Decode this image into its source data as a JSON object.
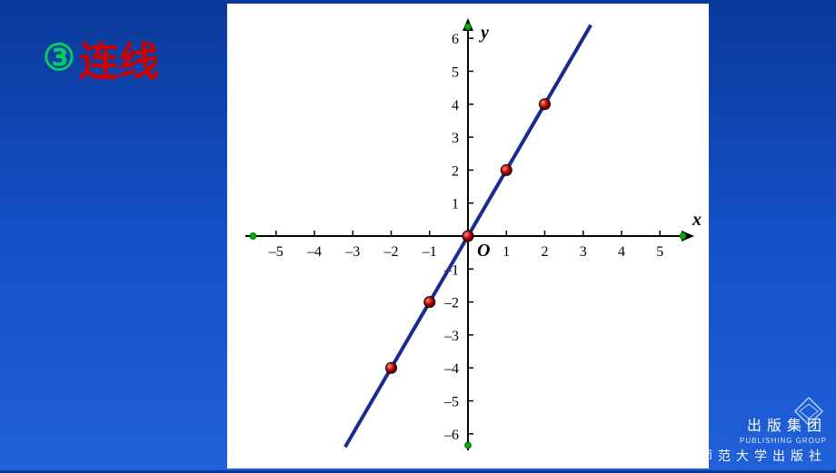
{
  "header": {
    "step_number": "③",
    "step_number_color": "#00d060",
    "step_title": "连线",
    "step_title_color": "#cc0000"
  },
  "chart": {
    "type": "scatter-line",
    "background_color": "#ffffff",
    "xlabel": "x",
    "ylabel": "y",
    "origin_label": "O",
    "label_fontsize": 20,
    "label_style": "italic bold",
    "xlim": [
      -5.8,
      5.8
    ],
    "ylim": [
      -6.5,
      6.5
    ],
    "xticks": [
      -5,
      -4,
      -3,
      -2,
      -1,
      1,
      2,
      3,
      4,
      5
    ],
    "yticks": [
      -6,
      -5,
      -4,
      -3,
      -2,
      -1,
      1,
      2,
      3,
      4,
      5,
      6
    ],
    "tick_fontsize": 16,
    "axis_color": "#000000",
    "axis_width": 2,
    "line": {
      "x": [
        -3.2,
        3.2
      ],
      "y": [
        -6.4,
        6.4
      ],
      "slope": 2,
      "intercept": 0,
      "color": "#1a2a90",
      "width": 4
    },
    "points": {
      "x": [
        -2,
        -1,
        0,
        1,
        2
      ],
      "y": [
        -4,
        -2,
        0,
        2,
        4
      ],
      "fill_color": "#d01818",
      "stroke_color": "#000000",
      "radius": 6,
      "highlight_color": "#ffffff"
    },
    "endpoint_markers": {
      "color": "#00b000",
      "radius": 3.5,
      "positions": [
        {
          "x": -5.6,
          "y": 0
        },
        {
          "x": 5.6,
          "y": 0
        },
        {
          "x": 0,
          "y": 6.35
        },
        {
          "x": 0,
          "y": -6.35
        }
      ]
    }
  },
  "publisher": {
    "group_cn": "出版集团",
    "group_en": "PUBLISHING GROUP",
    "press_cn": "北京师范大学出版社"
  }
}
